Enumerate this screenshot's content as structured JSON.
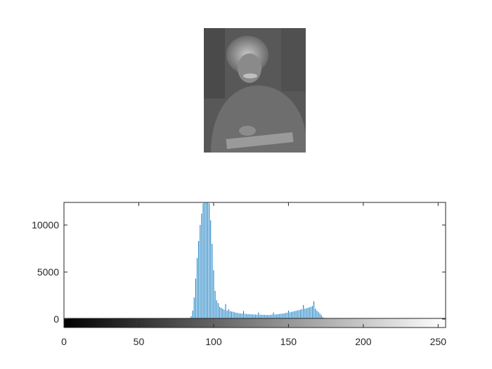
{
  "figure": {
    "photo_description": "grayscale portrait photograph",
    "photo_tones": {
      "background": "#5a5a5a",
      "hair": "#b0b0b0",
      "face": "#8a8a8a",
      "paper": "#9a9a9a"
    }
  },
  "chart_data": {
    "type": "bar",
    "title": "",
    "xlabel": "",
    "ylabel": "",
    "xlim": [
      0,
      255
    ],
    "ylim": [
      -900,
      12400
    ],
    "x_ticks": [
      0,
      50,
      100,
      150,
      200,
      250
    ],
    "y_ticks": [
      0,
      5000,
      10000
    ],
    "grid": false,
    "bar_color": "#0072bd",
    "colorbar": {
      "from": "#000000",
      "to": "#ffffff",
      "range": [
        0,
        255
      ]
    },
    "bins": [
      [
        85,
        300
      ],
      [
        86,
        900
      ],
      [
        87,
        2300
      ],
      [
        88,
        4300
      ],
      [
        89,
        6500
      ],
      [
        90,
        8300
      ],
      [
        91,
        10000
      ],
      [
        92,
        11200
      ],
      [
        93,
        12300
      ],
      [
        94,
        12400
      ],
      [
        95,
        12400
      ],
      [
        96,
        12400
      ],
      [
        97,
        12300
      ],
      [
        98,
        10500
      ],
      [
        99,
        8000
      ],
      [
        100,
        5200
      ],
      [
        101,
        3000
      ],
      [
        102,
        2000
      ],
      [
        103,
        1700
      ],
      [
        104,
        1300
      ],
      [
        105,
        1200
      ],
      [
        106,
        1100
      ],
      [
        107,
        1000
      ],
      [
        108,
        1600
      ],
      [
        109,
        900
      ],
      [
        110,
        1050
      ],
      [
        111,
        850
      ],
      [
        112,
        800
      ],
      [
        113,
        780
      ],
      [
        114,
        720
      ],
      [
        115,
        680
      ],
      [
        116,
        650
      ],
      [
        117,
        620
      ],
      [
        118,
        600
      ],
      [
        119,
        580
      ],
      [
        120,
        860
      ],
      [
        121,
        560
      ],
      [
        122,
        540
      ],
      [
        123,
        530
      ],
      [
        124,
        520
      ],
      [
        125,
        510
      ],
      [
        126,
        500
      ],
      [
        127,
        490
      ],
      [
        128,
        480
      ],
      [
        129,
        470
      ],
      [
        130,
        700
      ],
      [
        131,
        460
      ],
      [
        132,
        455
      ],
      [
        133,
        450
      ],
      [
        134,
        445
      ],
      [
        135,
        440
      ],
      [
        136,
        435
      ],
      [
        137,
        430
      ],
      [
        138,
        450
      ],
      [
        139,
        470
      ],
      [
        140,
        700
      ],
      [
        141,
        490
      ],
      [
        142,
        500
      ],
      [
        143,
        520
      ],
      [
        144,
        540
      ],
      [
        145,
        560
      ],
      [
        146,
        580
      ],
      [
        147,
        600
      ],
      [
        148,
        640
      ],
      [
        149,
        680
      ],
      [
        150,
        900
      ],
      [
        151,
        720
      ],
      [
        152,
        760
      ],
      [
        153,
        800
      ],
      [
        154,
        840
      ],
      [
        155,
        880
      ],
      [
        156,
        920
      ],
      [
        157,
        960
      ],
      [
        158,
        1000
      ],
      [
        159,
        1050
      ],
      [
        160,
        1500
      ],
      [
        161,
        1100
      ],
      [
        162,
        1150
      ],
      [
        163,
        1200
      ],
      [
        164,
        1250
      ],
      [
        165,
        1300
      ],
      [
        166,
        1400
      ],
      [
        167,
        1900
      ],
      [
        168,
        1100
      ],
      [
        169,
        900
      ],
      [
        170,
        750
      ],
      [
        171,
        600
      ],
      [
        172,
        400
      ],
      [
        173,
        200
      ],
      [
        174,
        60
      ]
    ]
  }
}
